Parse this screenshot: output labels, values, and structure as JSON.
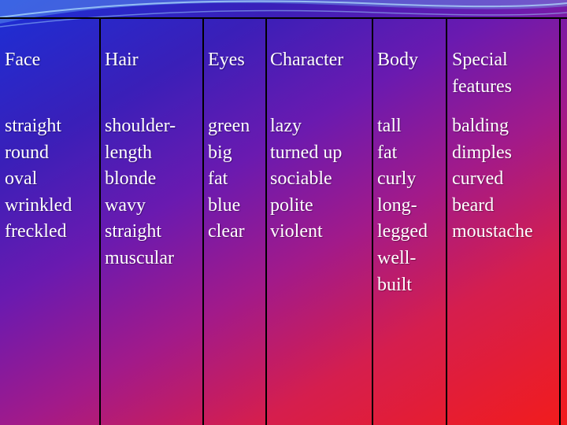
{
  "colors": {
    "background_top_left": "#1b2fd6",
    "background_bottom_right": "#f21c1c",
    "text": "#ffffff",
    "grid_lines": "#000000"
  },
  "columns": [
    {
      "header": [
        "Face"
      ],
      "items": [
        "straight",
        "round",
        "oval",
        "wrinkled",
        "freckled"
      ]
    },
    {
      "header": [
        "Hair"
      ],
      "items": [
        "shoulder-",
        "length",
        "blonde",
        "wavy",
        "straight",
        "muscular"
      ]
    },
    {
      "header": [
        "Eyes"
      ],
      "items": [
        "green",
        "big",
        "fat",
        "blue",
        "clear"
      ]
    },
    {
      "header": [
        "Character"
      ],
      "items": [
        "lazy",
        "turned up",
        "sociable",
        "polite",
        "violent"
      ]
    },
    {
      "header": [
        "Body"
      ],
      "items": [
        "tall",
        "fat",
        "curly",
        "long-",
        "legged",
        "well-",
        "built"
      ]
    },
    {
      "header": [
        "Special",
        "features"
      ],
      "items": [
        "balding",
        "dimples",
        "curved",
        "beard",
        "moustache"
      ]
    }
  ]
}
